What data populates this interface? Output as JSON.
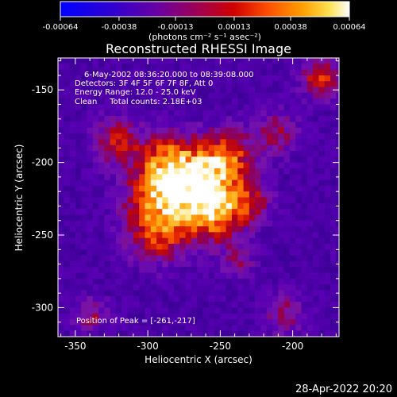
{
  "chart_data": {
    "type": "heatmap",
    "title": "Reconstructed RHESSI Image",
    "xlabel": "Heliocentric X (arcsec)",
    "ylabel": "Heliocentric Y (arcsec)",
    "xlim": [
      -362,
      -168
    ],
    "ylim": [
      -320,
      -128
    ],
    "x_ticks": [
      "-350",
      "-300",
      "-250",
      "-200"
    ],
    "x_tick_values": [
      -350,
      -300,
      -250,
      -200
    ],
    "y_ticks": [
      "-150",
      "-200",
      "-250",
      "-300"
    ],
    "y_tick_values": [
      -150,
      -200,
      -250,
      -300
    ],
    "annotations": [
      "6-May-2002 08:36:20.000 to 08:39:08.000",
      "Detectors: 3F 4F 5F 6F 7F 8F, Att 0",
      "Energy Range: 12.0 - 25.0 keV",
      "Clean     Total counts: 2.18E+03"
    ],
    "peak_label": "Position of Peak = [-261,-217]",
    "peak": [
      -261,
      -217
    ],
    "colorbar": {
      "ticks": [
        "-0.00064",
        "-0.00038",
        "-0.00013",
        "0.00013",
        "0.00038",
        "0.00064"
      ],
      "tick_values": [
        -0.00064,
        -0.00038,
        -0.00013,
        0.00013,
        0.00038,
        0.00064
      ],
      "units": "(photons cm⁻² s⁻¹ asec⁻²)",
      "range": [
        -0.00064,
        0.00064
      ]
    },
    "grid": false,
    "colormap": [
      "#0000ff",
      "#5a00b4",
      "#8a0070",
      "#c00000",
      "#ff5a00",
      "#ffa000",
      "#ffe060",
      "#ffffff"
    ],
    "sources": [
      {
        "x": -261,
        "y": -217,
        "sigma": 16,
        "value": 0.00064
      },
      {
        "x": -292,
        "y": -222,
        "sigma": 15,
        "value": 0.0004
      },
      {
        "x": -285,
        "y": -200,
        "sigma": 13,
        "value": 0.00038
      },
      {
        "x": -245,
        "y": -195,
        "sigma": 12,
        "value": 0.0003
      },
      {
        "x": -293,
        "y": -248,
        "sigma": 14,
        "value": 0.00032
      },
      {
        "x": -320,
        "y": -185,
        "sigma": 11,
        "value": 0.00026
      },
      {
        "x": -255,
        "y": -238,
        "sigma": 13,
        "value": 0.00028
      },
      {
        "x": -230,
        "y": -228,
        "sigma": 10,
        "value": 0.00022
      },
      {
        "x": -212,
        "y": -180,
        "sigma": 10,
        "value": 0.0002
      },
      {
        "x": -180,
        "y": -142,
        "sigma": 9,
        "value": 0.00032
      },
      {
        "x": -205,
        "y": -305,
        "sigma": 9,
        "value": 0.0002
      },
      {
        "x": -340,
        "y": -305,
        "sigma": 8,
        "value": 0.00018
      },
      {
        "x": -238,
        "y": -268,
        "sigma": 8,
        "value": 0.00016
      }
    ]
  },
  "footer": {
    "timestamp": "28-Apr-2022 20:20"
  }
}
